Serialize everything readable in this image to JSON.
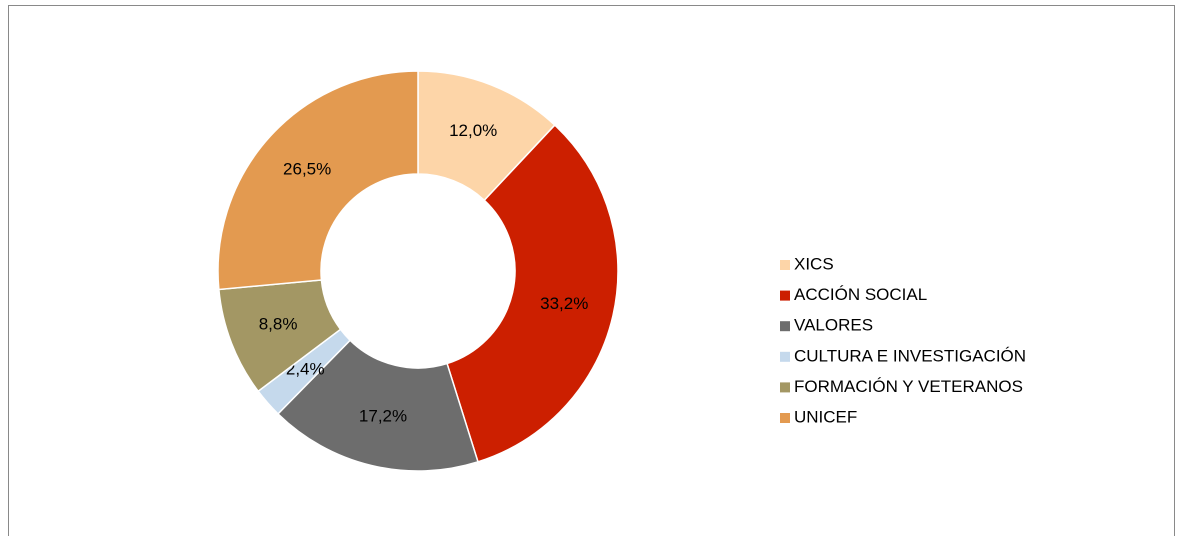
{
  "chart_data": {
    "type": "donut",
    "categories": [
      "XICS",
      "ACCIÓN SOCIAL",
      "VALORES",
      "CULTURA E INVESTIGACIÓN",
      "FORMACIÓN Y VETERANOS",
      "UNICEF"
    ],
    "values": [
      12.0,
      33.2,
      17.2,
      2.4,
      8.8,
      26.5
    ],
    "value_labels": [
      "12,0%",
      "33,2%",
      "17,2%",
      "2,4%",
      "8,8%",
      "26,5%"
    ],
    "colors": [
      "#fdd5a8",
      "#cc1f00",
      "#6d6d6d",
      "#c5d9ec",
      "#a39764",
      "#e39a50"
    ],
    "legend": "right"
  }
}
